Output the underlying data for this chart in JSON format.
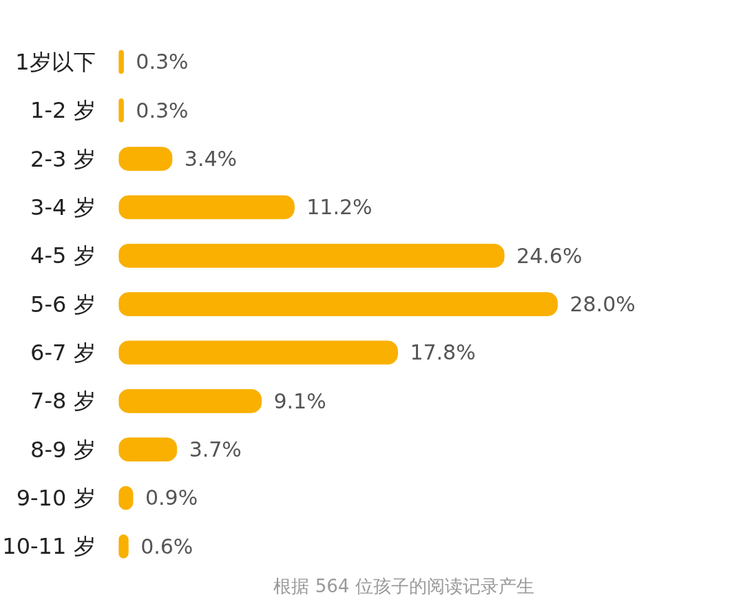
{
  "chart_data": {
    "type": "bar",
    "orientation": "horizontal",
    "categories": [
      "1岁以下",
      "1-2 岁",
      "2-3 岁",
      "3-4 岁",
      "4-5 岁",
      "5-6 岁",
      "6-7 岁",
      "7-8 岁",
      "8-9 岁",
      "9-10 岁",
      "10-11 岁"
    ],
    "values": [
      0.3,
      0.3,
      3.4,
      11.2,
      24.6,
      28.0,
      17.8,
      9.1,
      3.7,
      0.9,
      0.6
    ],
    "value_labels": [
      "0.3%",
      "0.3%",
      "3.4%",
      "11.2%",
      "24.6%",
      "28.0%",
      "17.8%",
      "9.1%",
      "3.7%",
      "0.9%",
      "0.6%"
    ],
    "color": "#f9b000",
    "grid": false,
    "annotations": [
      "根据 564 位孩子的阅读记录产生"
    ]
  }
}
